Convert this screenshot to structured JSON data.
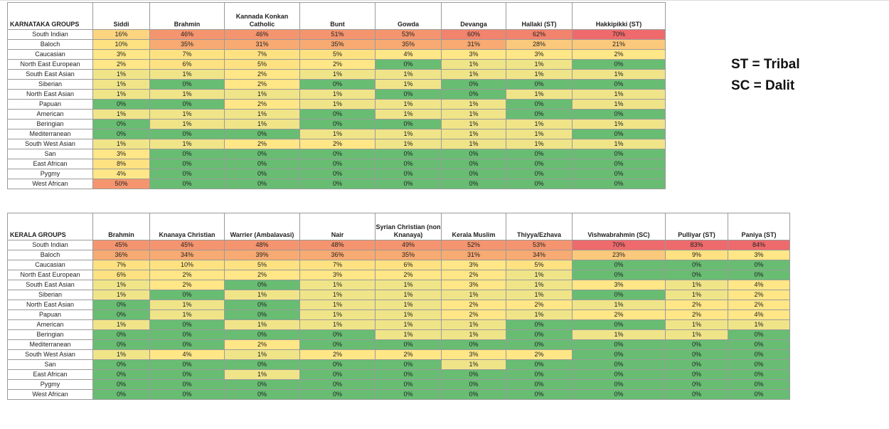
{
  "legend": {
    "st": "ST = Tribal",
    "sc": "SC = Dalit"
  },
  "karnataka": {
    "title": "KARNATAKA GROUPS",
    "columns": [
      "Siddi",
      "Brahmin",
      "Kannada Konkan Catholic",
      "Bunt",
      "Gowda",
      "Devanga",
      "Hallaki (ST)",
      "Hakkipikki (ST)"
    ],
    "rows": [
      {
        "label": "South Indian",
        "values": [
          "16%",
          "46%",
          "46%",
          "51%",
          "53%",
          "60%",
          "62%",
          "70%"
        ]
      },
      {
        "label": "Baloch",
        "values": [
          "10%",
          "35%",
          "31%",
          "35%",
          "35%",
          "31%",
          "28%",
          "21%"
        ]
      },
      {
        "label": "Caucasian",
        "values": [
          "3%",
          "7%",
          "7%",
          "5%",
          "4%",
          "3%",
          "3%",
          "2%"
        ]
      },
      {
        "label": "North East European",
        "values": [
          "2%",
          "6%",
          "5%",
          "2%",
          "0%",
          "1%",
          "1%",
          "0%"
        ]
      },
      {
        "label": "South East Asian",
        "values": [
          "1%",
          "1%",
          "2%",
          "1%",
          "1%",
          "1%",
          "1%",
          "1%"
        ]
      },
      {
        "label": "Siberian",
        "values": [
          "1%",
          "0%",
          "2%",
          "0%",
          "1%",
          "0%",
          "0%",
          "0%"
        ]
      },
      {
        "label": "North East Asian",
        "values": [
          "1%",
          "1%",
          "1%",
          "1%",
          "0%",
          "0%",
          "1%",
          "1%"
        ]
      },
      {
        "label": "Papuan",
        "values": [
          "0%",
          "0%",
          "2%",
          "1%",
          "1%",
          "1%",
          "0%",
          "1%"
        ]
      },
      {
        "label": "American",
        "values": [
          "1%",
          "1%",
          "1%",
          "0%",
          "1%",
          "1%",
          "0%",
          "0%"
        ]
      },
      {
        "label": "Beringian",
        "values": [
          "0%",
          "1%",
          "1%",
          "0%",
          "0%",
          "1%",
          "1%",
          "1%"
        ]
      },
      {
        "label": "Mediterranean",
        "values": [
          "0%",
          "0%",
          "0%",
          "1%",
          "1%",
          "1%",
          "1%",
          "0%"
        ]
      },
      {
        "label": "South West Asian",
        "values": [
          "1%",
          "1%",
          "2%",
          "2%",
          "1%",
          "1%",
          "1%",
          "1%"
        ]
      },
      {
        "label": "San",
        "values": [
          "3%",
          "0%",
          "0%",
          "0%",
          "0%",
          "0%",
          "0%",
          "0%"
        ]
      },
      {
        "label": "East African",
        "values": [
          "8%",
          "0%",
          "0%",
          "0%",
          "0%",
          "0%",
          "0%",
          "0%"
        ]
      },
      {
        "label": "Pygmy",
        "values": [
          "4%",
          "0%",
          "0%",
          "0%",
          "0%",
          "0%",
          "0%",
          "0%"
        ]
      },
      {
        "label": "West African",
        "values": [
          "50%",
          "0%",
          "0%",
          "0%",
          "0%",
          "0%",
          "0%",
          "0%"
        ]
      }
    ]
  },
  "kerala": {
    "title": "KERALA GROUPS",
    "columns": [
      "Brahmin",
      "Knanaya Christian",
      "Warrier (Ambalavasi)",
      "Nair",
      "Syrian Christian (non Knanaya)",
      "Kerala Muslim",
      "Thiyya/Ezhava",
      "Vishwabrahmin (SC)",
      "Pulliyar (ST)",
      "Paniya (ST)"
    ],
    "rows": [
      {
        "label": "South Indian",
        "values": [
          "45%",
          "45%",
          "48%",
          "48%",
          "49%",
          "52%",
          "53%",
          "70%",
          "83%",
          "84%"
        ]
      },
      {
        "label": "Baloch",
        "values": [
          "36%",
          "34%",
          "39%",
          "36%",
          "35%",
          "31%",
          "34%",
          "23%",
          "9%",
          "3%"
        ]
      },
      {
        "label": "Caucasian",
        "values": [
          "7%",
          "10%",
          "5%",
          "7%",
          "6%",
          "3%",
          "5%",
          "0%",
          "0%",
          "0%"
        ]
      },
      {
        "label": "North East European",
        "values": [
          "6%",
          "2%",
          "2%",
          "3%",
          "2%",
          "2%",
          "1%",
          "0%",
          "0%",
          "0%"
        ]
      },
      {
        "label": "South East Asian",
        "values": [
          "1%",
          "2%",
          "0%",
          "1%",
          "1%",
          "3%",
          "1%",
          "3%",
          "1%",
          "4%"
        ]
      },
      {
        "label": "Siberian",
        "values": [
          "1%",
          "0%",
          "1%",
          "1%",
          "1%",
          "1%",
          "1%",
          "0%",
          "1%",
          "2%"
        ]
      },
      {
        "label": "North East Asian",
        "values": [
          "0%",
          "1%",
          "0%",
          "1%",
          "1%",
          "2%",
          "2%",
          "1%",
          "2%",
          "2%"
        ]
      },
      {
        "label": "Papuan",
        "values": [
          "0%",
          "1%",
          "0%",
          "1%",
          "1%",
          "2%",
          "1%",
          "2%",
          "2%",
          "4%"
        ]
      },
      {
        "label": "American",
        "values": [
          "1%",
          "0%",
          "1%",
          "1%",
          "1%",
          "1%",
          "0%",
          "0%",
          "1%",
          "1%"
        ]
      },
      {
        "label": "Beringian",
        "values": [
          "0%",
          "0%",
          "0%",
          "0%",
          "1%",
          "1%",
          "0%",
          "1%",
          "1%",
          "0%"
        ]
      },
      {
        "label": "Mediterranean",
        "values": [
          "0%",
          "0%",
          "2%",
          "0%",
          "0%",
          "0%",
          "0%",
          "0%",
          "0%",
          "0%"
        ]
      },
      {
        "label": "South West Asian",
        "values": [
          "1%",
          "4%",
          "1%",
          "2%",
          "2%",
          "3%",
          "2%",
          "0%",
          "0%",
          "0%"
        ]
      },
      {
        "label": "San",
        "values": [
          "0%",
          "0%",
          "0%",
          "0%",
          "0%",
          "1%",
          "0%",
          "0%",
          "0%",
          "0%"
        ]
      },
      {
        "label": "East African",
        "values": [
          "0%",
          "0%",
          "1%",
          "0%",
          "0%",
          "0%",
          "0%",
          "0%",
          "0%",
          "0%"
        ]
      },
      {
        "label": "Pygmy",
        "values": [
          "0%",
          "0%",
          "0%",
          "0%",
          "0%",
          "0%",
          "0%",
          "0%",
          "0%",
          "0%"
        ]
      },
      {
        "label": "West African",
        "values": [
          "0%",
          "0%",
          "0%",
          "0%",
          "0%",
          "0%",
          "0%",
          "0%",
          "0%",
          "0%"
        ]
      }
    ]
  }
}
